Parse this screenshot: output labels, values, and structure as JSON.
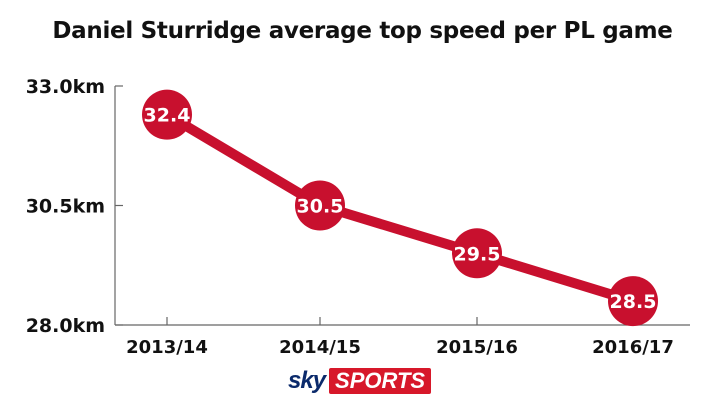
{
  "chart_data": {
    "type": "line",
    "title": "Daniel Sturridge average top speed per PL game",
    "xlabel": "",
    "ylabel": "",
    "categories": [
      "2013/14",
      "2014/15",
      "2015/16",
      "2016/17"
    ],
    "series": [
      {
        "values": [
          32.4,
          30.5,
          29.5,
          28.5
        ],
        "labels": [
          "32.4",
          "30.5",
          "29.5",
          "28.5"
        ]
      }
    ],
    "ylim": [
      28.0,
      33.0
    ],
    "yticks": [
      {
        "value": 28.0,
        "label": "28.0km"
      },
      {
        "value": 30.5,
        "label": "30.5km"
      },
      {
        "value": 33.0,
        "label": "33.0km"
      }
    ],
    "grid": false,
    "legend": "none",
    "colors": {
      "line": "#c8102e",
      "text": "#111111",
      "axis": "#666666"
    }
  },
  "branding": {
    "logo_sky": "sky",
    "logo_sports": "SPORTS"
  }
}
